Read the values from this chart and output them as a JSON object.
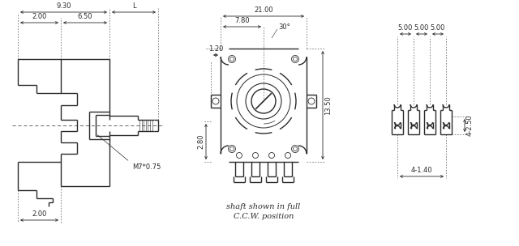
{
  "bg_color": "#ffffff",
  "line_color": "#2a2a2a",
  "figsize": [
    6.4,
    3.04
  ],
  "dpi": 100,
  "annotations": {
    "dim_930": "9.30",
    "dim_L": "L",
    "dim_200_top": "2.00",
    "dim_650": "6.50",
    "dim_M7": "M7*0.75",
    "dim_200_bot": "2.00",
    "dim_2100": "21.00",
    "dim_780": "7.80",
    "dim_30": "30°",
    "dim_120": "1.20",
    "dim_280": "2.80",
    "dim_1350": "13.50",
    "dim_500": "5.00",
    "dim_4250": "4-2.50",
    "dim_4140": "4-1.40",
    "note1": "shaft shown in full",
    "note2": "C.C.W. position"
  }
}
